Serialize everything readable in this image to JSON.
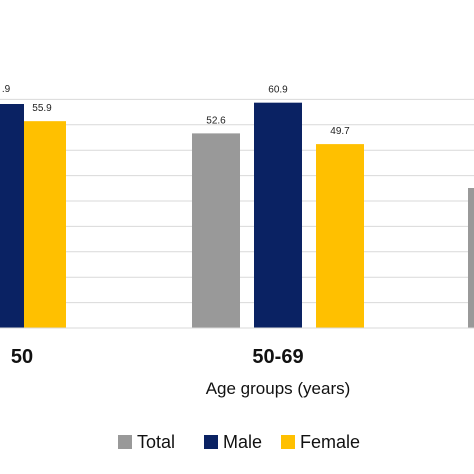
{
  "chart_data": {
    "type": "bar",
    "categories": [
      "50",
      "50-69",
      ""
    ],
    "series": [
      {
        "name": "Total",
        "color": "#999999",
        "values": [
          null,
          52.6,
          null
        ]
      },
      {
        "name": "Male",
        "color": "#0a2263",
        "values": [
          null,
          60.9,
          null
        ]
      },
      {
        "name": "Female",
        "color": "#ffc000",
        "values": [
          55.9,
          49.7,
          null
        ]
      }
    ],
    "data_labels": [
      {
        "series": "Male",
        "category": "50",
        "text": ".9"
      },
      {
        "series": "Female",
        "category": "50",
        "text": "55.9"
      },
      {
        "series": "Total",
        "category": "50-69",
        "text": "52.6"
      },
      {
        "series": "Male",
        "category": "50-69",
        "text": "60.9"
      },
      {
        "series": "Female",
        "category": "50-69",
        "text": "49.7"
      }
    ],
    "xlabel": "Age groups (years)",
    "ylabel": "",
    "legend_position": "bottom",
    "gridlines": true,
    "cropped": true
  }
}
